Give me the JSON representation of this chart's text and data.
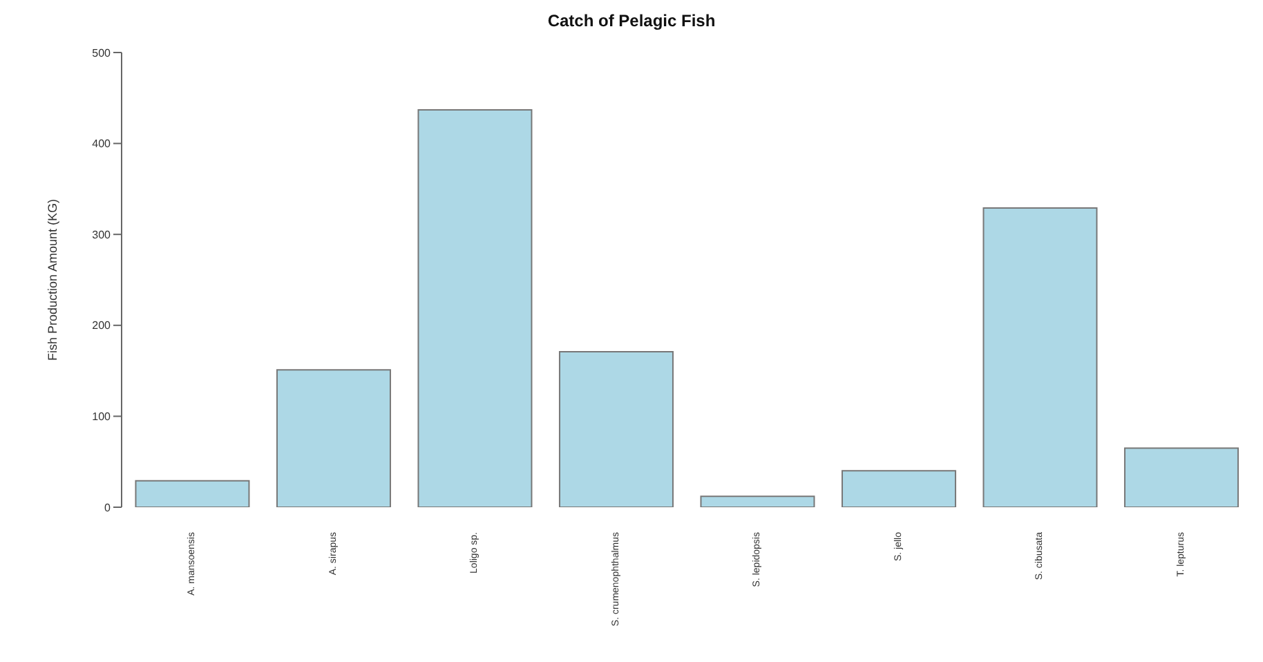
{
  "chart_data": {
    "type": "bar",
    "title": "Catch of Pelagic Fish",
    "ylabel": "Fish Production Amount (KG)",
    "categories": [
      "A. mansoensis",
      "A. sirapus",
      "Loligo sp.",
      "S. crumenophthalmus",
      "S. lepidopsis",
      "S. jello",
      "S. cibusata",
      "T. lepturus"
    ],
    "values": [
      29,
      151,
      437,
      171,
      12,
      40,
      329,
      65
    ],
    "color": "#add8e6",
    "ylim": [
      0,
      500
    ],
    "yticks": [
      0,
      100,
      200,
      300,
      400,
      500
    ],
    "grid": false
  }
}
